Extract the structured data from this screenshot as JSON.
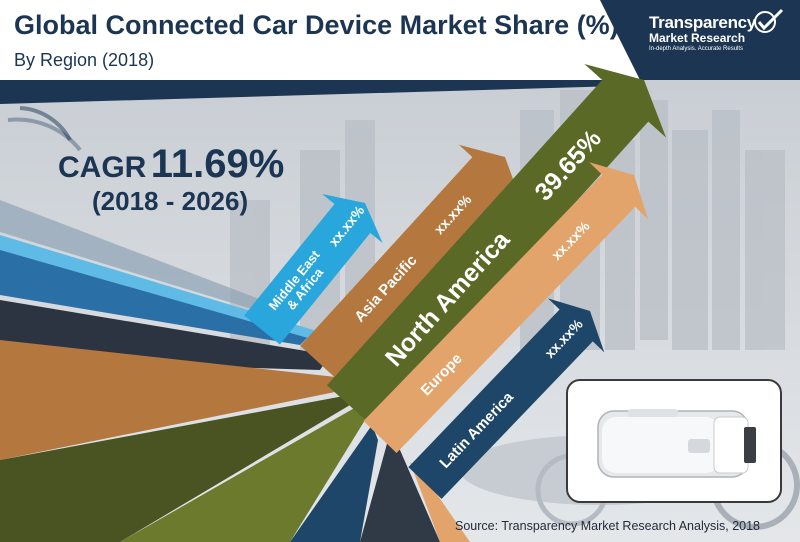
{
  "header": {
    "title": "Global Connected Car Device Market Share (%)",
    "subtitle": "By Region (2018)"
  },
  "logo": {
    "line1": "Transparency",
    "line2": "Market Research",
    "tagline": "In-depth Analysis. Accurate Results"
  },
  "cagr": {
    "label": "CAGR",
    "value": "11.69%",
    "period": "(2018 - 2026)"
  },
  "source": "Source: Transparency Market Research Analysis, 2018",
  "colors": {
    "title": "#1c3553",
    "middle_east_africa": "#29a7dc",
    "asia_pacific": "#b4773e",
    "north_america": "#5a6a26",
    "europe": "#e2a46a",
    "latin_america": "#1d4668"
  },
  "chart_data": {
    "type": "bar",
    "title": "Global Connected Car Device Market Share (%)",
    "subtitle": "By Region (2018)",
    "categories": [
      "Middle East & Africa",
      "Asia Pacific",
      "North America",
      "Europe",
      "Latin America"
    ],
    "category_lines": [
      [
        "Middle East",
        "& Africa"
      ],
      [
        "Asia Pacific"
      ],
      [
        "North America"
      ],
      [
        "Europe"
      ],
      [
        "Latin America"
      ]
    ],
    "value_labels": [
      "xx.xx%",
      "xx.xx%",
      "39.65%",
      "xx.xx%",
      "xx.xx%"
    ],
    "values": [
      null,
      null,
      39.65,
      null,
      null
    ],
    "unit": "%"
  }
}
